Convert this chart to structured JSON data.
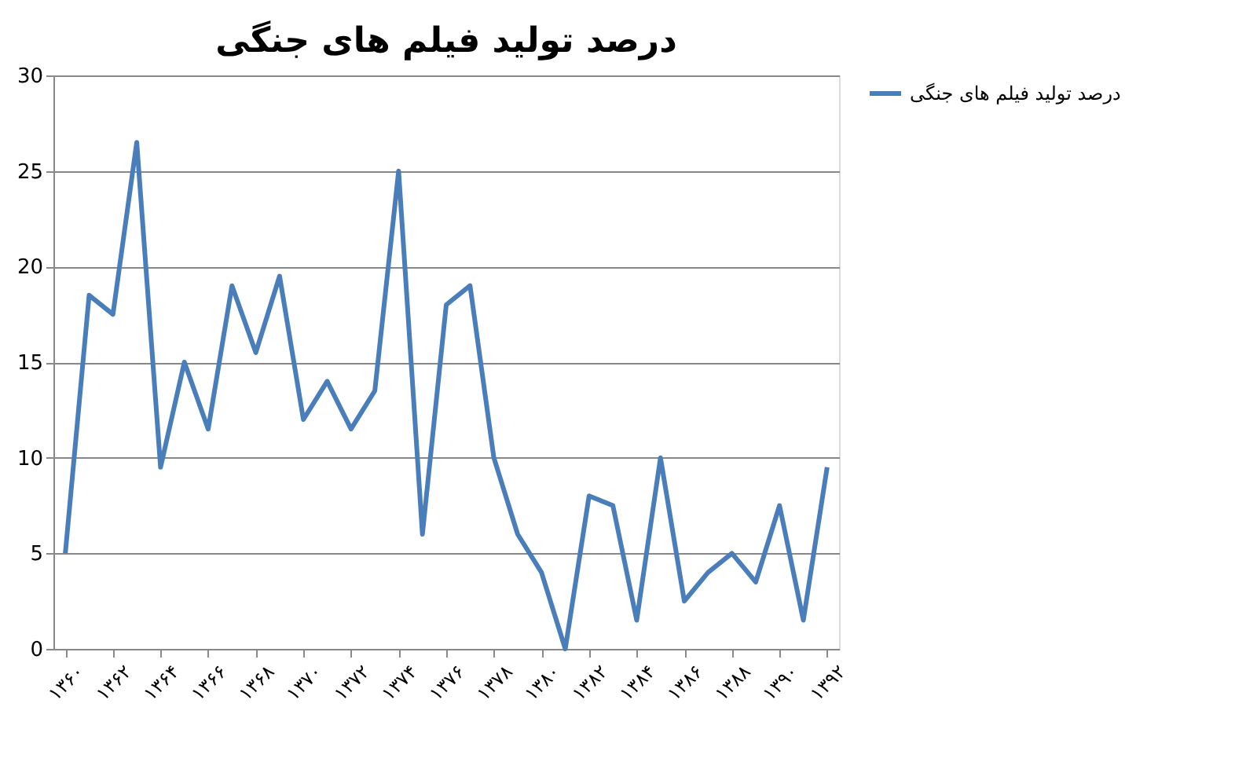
{
  "chart_data": {
    "type": "line",
    "title": "درصد تولید فیلم های جنگی",
    "categories": [
      "۱۳۶۰",
      null,
      "۱۳۶۲",
      null,
      "۱۳۶۴",
      null,
      "۱۳۶۶",
      null,
      "۱۳۶۸",
      null,
      "۱۳۷۰",
      null,
      "۱۳۷۲",
      null,
      "۱۳۷۴",
      null,
      "۱۳۷۶",
      null,
      "۱۳۷۸",
      null,
      "۱۳۸۰",
      null,
      "۱۳۸۲",
      null,
      "۱۳۸۴",
      null,
      "۱۳۸۶",
      null,
      "۱۳۸۸",
      null,
      "۱۳۹۰",
      null,
      "۱۳۹۲"
    ],
    "series": [
      {
        "name": "درصد تولید فیلم های جنگی",
        "color": "#4a7ebb",
        "values": [
          5,
          18.5,
          17.5,
          26.5,
          9.5,
          15,
          11.5,
          19,
          15.5,
          19.5,
          12,
          14,
          11.5,
          13.5,
          25,
          6,
          18,
          19,
          10,
          6,
          4,
          0,
          8,
          7.5,
          1.5,
          10,
          2.5,
          4,
          5,
          3.5,
          7.5,
          1.5,
          9.5
        ]
      }
    ],
    "ylim": [
      0,
      30
    ],
    "yticks": [
      0,
      5,
      10,
      15,
      20,
      25,
      30
    ],
    "grid": "y",
    "legend": "right",
    "marker": "none",
    "line_style": "solid"
  }
}
